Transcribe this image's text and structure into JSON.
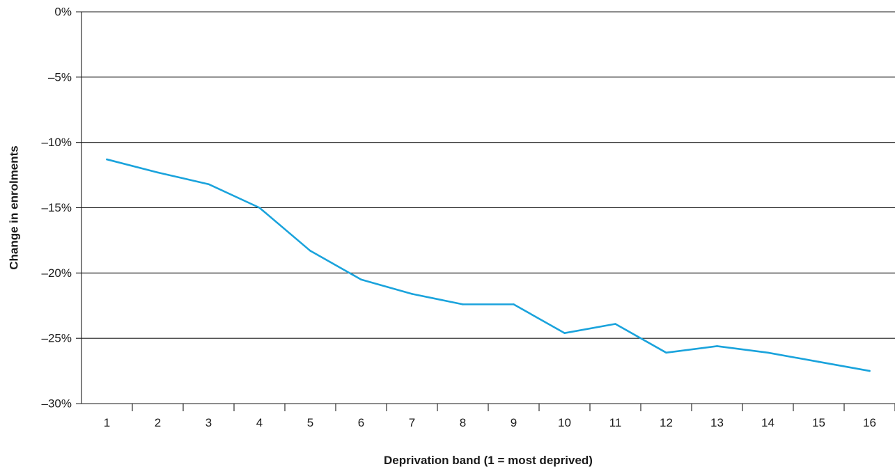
{
  "chart_data": {
    "type": "line",
    "title": "",
    "xlabel": "Deprivation band (1 = most deprived)",
    "ylabel": "Change in enrolments",
    "categories": [
      "1",
      "2",
      "3",
      "4",
      "5",
      "6",
      "7",
      "8",
      "9",
      "10",
      "11",
      "12",
      "13",
      "14",
      "15",
      "16"
    ],
    "series": [
      {
        "values": [
          -11.3,
          -12.3,
          -13.2,
          -15.0,
          -18.3,
          -20.5,
          -21.6,
          -22.4,
          -22.4,
          -24.6,
          -23.9,
          -26.1,
          -25.6,
          -26.1,
          -26.8,
          -27.5
        ],
        "color": "#1aa3dc"
      }
    ],
    "ylim": [
      -30,
      0
    ],
    "yticks": [
      0,
      -5,
      -10,
      -15,
      -20,
      -25,
      -30
    ],
    "ytick_labels": [
      "0%",
      "–5%",
      "–10%",
      "–15%",
      "–20%",
      "–25%",
      "–30%"
    ],
    "grid": true,
    "legend": "none",
    "colors": {
      "gridline": "#1a1a1a",
      "axis": "#1a1a1a",
      "text": "#1a1a1a"
    }
  }
}
